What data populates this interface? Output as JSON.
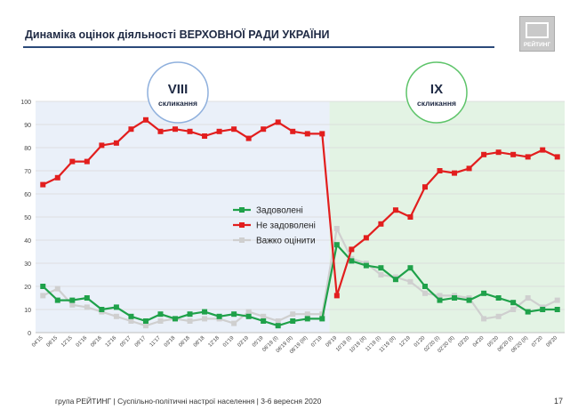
{
  "header": {
    "title": "Динаміка оцінок діяльності ВЕРХОВНОЇ РАДИ УКРАЇНИ",
    "logo_text": "РЕЙТИНГ"
  },
  "footer": {
    "text": "група РЕЙТИНГ | Суспільно-політичні настрої населення | 3-6 вересня 2020",
    "page_number": "17"
  },
  "colors": {
    "satisfied": "#1fa14a",
    "not_satisfied": "#e21e1e",
    "hard_to_say": "#cfcfcf",
    "period_viii_bg": "#eaf0f9",
    "period_ix_bg": "#e3f3e4",
    "circle_viii": "#8fb0dd",
    "circle_ix": "#5ec46a"
  },
  "chart_data": {
    "type": "line",
    "ylim": [
      0,
      100
    ],
    "yticks": [
      "0",
      "10",
      "20",
      "30",
      "40",
      "50",
      "60",
      "70",
      "80",
      "90",
      "100"
    ],
    "x": [
      "04'15",
      "06'15",
      "12'15",
      "01'16",
      "06'16",
      "12'16",
      "05'17",
      "09'17",
      "11'17",
      "03'18",
      "06'18",
      "08'18",
      "12'18",
      "01'19",
      "03'19",
      "05'19",
      "06'19 (I)",
      "06'19 (II)",
      "06'19 (III)",
      "07'19",
      "09'19",
      "10'19 (I)",
      "10'19 (II)",
      "11'19 (I)",
      "11'19 (II)",
      "12'19",
      "01'20",
      "02'20 (I)",
      "02'20 (II)",
      "03'20",
      "04'20",
      "05'20",
      "06'20 (I)",
      "06'20 (II)",
      "07'20",
      "09'20"
    ],
    "x_labels_shown": [
      "04'15",
      "06'15",
      "12'15",
      "01'16",
      "06'16",
      "12'16",
      "05'17",
      "09'17",
      "11'17",
      "03'18",
      "06'18",
      "08'18",
      "12'18",
      "01'19",
      "03'19",
      "05'19",
      "06'19 (I)",
      "06'19 (II)",
      "06'19 (III)",
      "07'19",
      "09'19",
      "10'19 (I)",
      "10'19 (II)",
      "11'19 (I)",
      "11'19 (II)",
      "12'19",
      "01'20",
      "02'20 (I)",
      "02'20 (II)",
      "03'20",
      "04'20",
      "05'20",
      "06'20 (I)",
      "06'20 (II)",
      "07'20",
      "09'20"
    ],
    "series": [
      {
        "name": "Задоволені",
        "color_key": "satisfied",
        "values": [
          20,
          14,
          14,
          15,
          10,
          11,
          7,
          5,
          8,
          6,
          8,
          9,
          7,
          8,
          7,
          5,
          3,
          5,
          6,
          6,
          38,
          31,
          29,
          28,
          23,
          28,
          20,
          14,
          15,
          14,
          17,
          15,
          13,
          9,
          10,
          10
        ]
      },
      {
        "name": "Не задоволені",
        "color_key": "not_satisfied",
        "values": [
          64,
          67,
          74,
          74,
          81,
          82,
          88,
          92,
          87,
          88,
          87,
          85,
          87,
          88,
          84,
          88,
          91,
          87,
          86,
          86,
          16,
          36,
          41,
          47,
          53,
          50,
          63,
          70,
          69,
          71,
          77,
          78,
          77,
          76,
          79,
          76
        ]
      },
      {
        "name": "Важко оцінити",
        "color_key": "hard_to_say",
        "values": [
          16,
          19,
          12,
          11,
          9,
          7,
          5,
          3,
          5,
          6,
          5,
          6,
          6,
          4,
          9,
          7,
          5,
          8,
          8,
          8,
          45,
          32,
          30,
          25,
          24,
          22,
          17,
          16,
          16,
          15,
          6,
          7,
          10,
          15,
          11,
          14
        ]
      }
    ],
    "periods": [
      {
        "label": "VIII",
        "sublabel": "скликання",
        "start_index": 0,
        "end_index": 19
      },
      {
        "label": "IX",
        "sublabel": "скликання",
        "start_index": 20,
        "end_index": 35
      }
    ],
    "legend_placement": "center"
  }
}
